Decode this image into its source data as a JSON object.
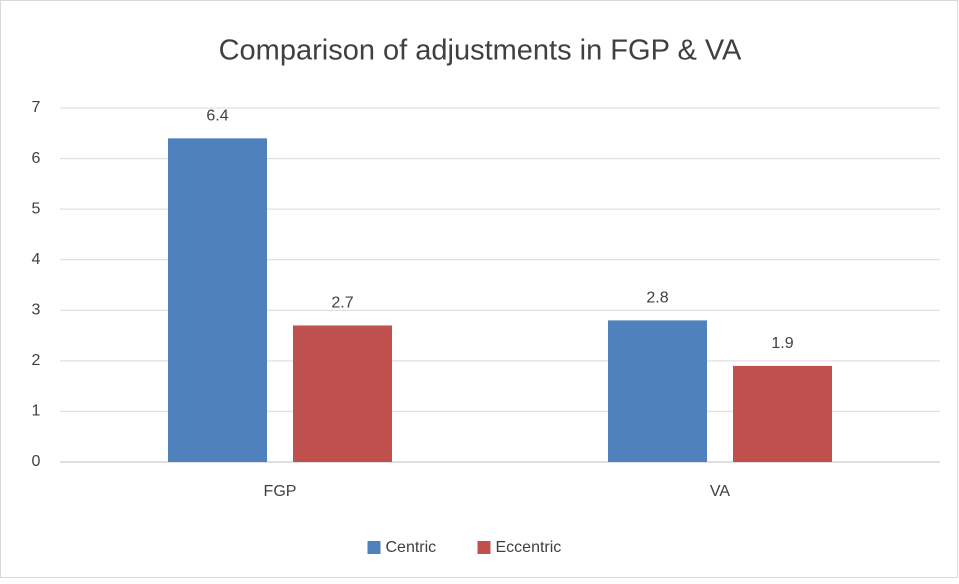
{
  "chart_data": {
    "type": "bar",
    "title": "Comparison of adjustments in FGP & VA",
    "categories": [
      "FGP",
      "VA"
    ],
    "series": [
      {
        "name": "Centric",
        "color": "#4f81bd",
        "values": [
          6.4,
          2.8
        ]
      },
      {
        "name": "Eccentric",
        "color": "#c0504d",
        "values": [
          2.7,
          1.9
        ]
      }
    ],
    "ylim": [
      0,
      7
    ],
    "yticks": [
      0,
      1,
      2,
      3,
      4,
      5,
      6,
      7
    ],
    "grid": true,
    "legend": "bottom"
  }
}
